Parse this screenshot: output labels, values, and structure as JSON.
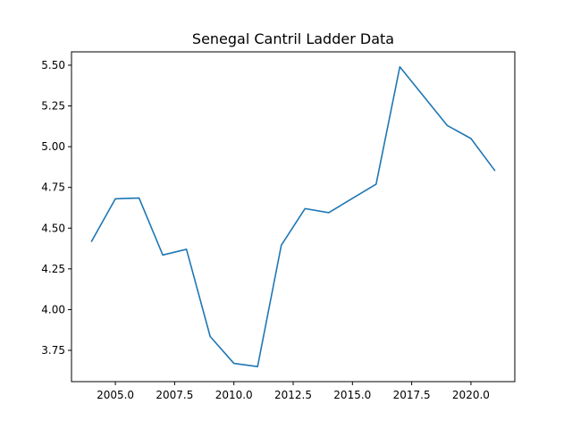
{
  "chart_data": {
    "type": "line",
    "title": "Senegal Cantril Ladder Data",
    "xlabel": "",
    "ylabel": "",
    "grid": false,
    "x": [
      2004,
      2005,
      2006,
      2007,
      2008,
      2009,
      2010,
      2011,
      2012,
      2013,
      2014,
      2016,
      2017,
      2019,
      2020,
      2021
    ],
    "series": [
      {
        "values": [
          4.42,
          4.68,
          4.685,
          4.335,
          4.37,
          3.835,
          3.67,
          3.65,
          4.395,
          4.62,
          4.595,
          4.77,
          5.49,
          5.13,
          5.05,
          4.855
        ],
        "color": "#1f77b4"
      }
    ],
    "xlim": [
      2003.15,
      2021.85
    ],
    "ylim": [
      3.558,
      5.582
    ],
    "x_ticks": [
      2005.0,
      2007.5,
      2010.0,
      2012.5,
      2015.0,
      2017.5,
      2020.0
    ],
    "x_tick_labels": [
      "2005.0",
      "2007.5",
      "2010.0",
      "2012.5",
      "2015.0",
      "2017.5",
      "2020.0"
    ],
    "y_ticks": [
      3.75,
      4.0,
      4.25,
      4.5,
      4.75,
      5.0,
      5.25,
      5.5
    ],
    "y_tick_labels": [
      "3.75",
      "4.00",
      "4.25",
      "4.50",
      "4.75",
      "5.00",
      "5.25",
      "5.50"
    ]
  }
}
